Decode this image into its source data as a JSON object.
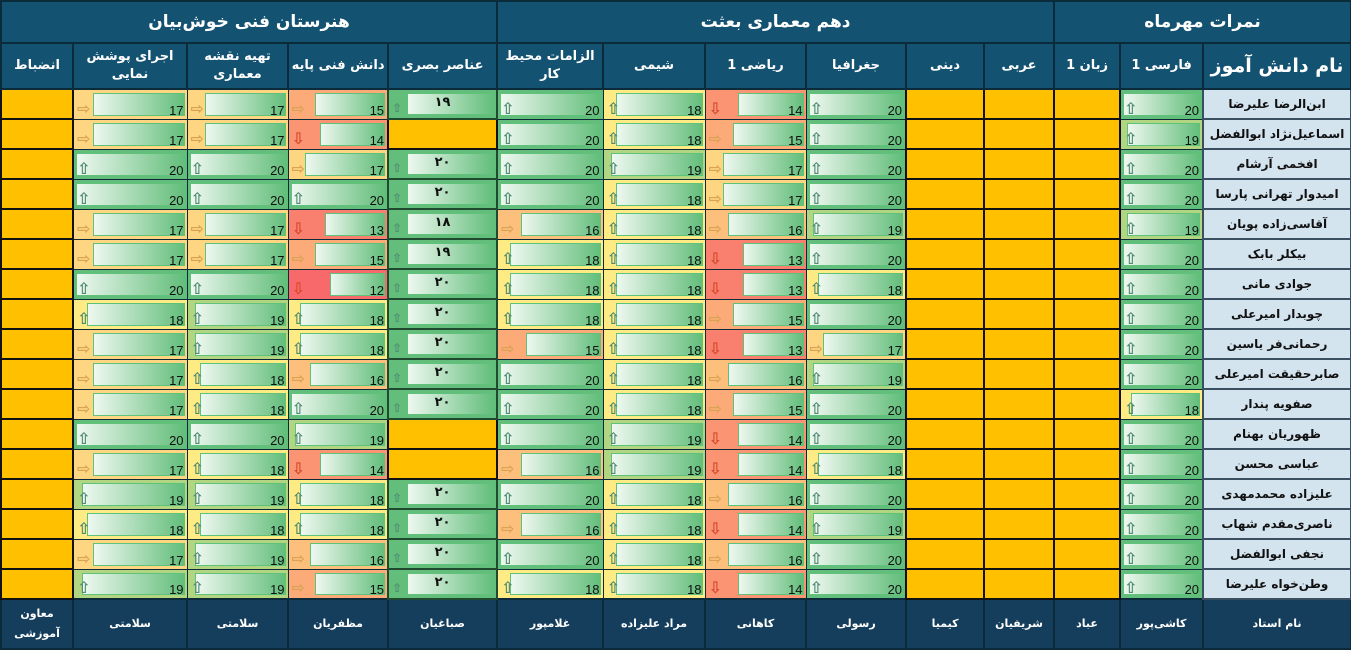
{
  "header_groups": [
    {
      "label": "نمرات مهرماه"
    },
    {
      "label": "دهم معماری بعثت"
    },
    {
      "label": "هنرستان فنی خوش‌بیان"
    }
  ],
  "columns": [
    "نام دانش آموز",
    "فارسی 1",
    "زبان 1",
    "عربی",
    "دینی",
    "جغرافیا",
    "ریاضی 1",
    "شیمی",
    "الزامات محیط کار",
    "عناصر بصری",
    "دانش فنی پایه",
    "تهیه نقشه معماری",
    "اجرای پوشش نمایی",
    "انضباط"
  ],
  "students": [
    {
      "name": "ابن‌الرضا علیرضا",
      "scores": [
        20,
        null,
        null,
        null,
        20,
        14,
        18,
        20,
        "۱۹",
        15,
        17,
        17,
        null
      ]
    },
    {
      "name": "اسماعیل‌نژاد ابوالفضل",
      "scores": [
        19,
        null,
        null,
        null,
        20,
        15,
        18,
        20,
        null,
        14,
        17,
        17,
        null
      ]
    },
    {
      "name": "افخمی آرشام",
      "scores": [
        20,
        null,
        null,
        null,
        20,
        17,
        19,
        20,
        "۲۰",
        17,
        20,
        20,
        null
      ]
    },
    {
      "name": "امیدوار تهرانی پارسا",
      "scores": [
        20,
        null,
        null,
        null,
        20,
        17,
        18,
        20,
        "۲۰",
        20,
        20,
        20,
        null
      ]
    },
    {
      "name": "آقاسی‌زاده پویان",
      "scores": [
        19,
        null,
        null,
        null,
        19,
        16,
        18,
        16,
        "۱۸",
        13,
        17,
        17,
        null
      ]
    },
    {
      "name": "بیکلر بابک",
      "scores": [
        20,
        null,
        null,
        null,
        20,
        13,
        18,
        18,
        "۱۹",
        15,
        17,
        17,
        null
      ]
    },
    {
      "name": "جوادی مانی",
      "scores": [
        20,
        null,
        null,
        null,
        18,
        13,
        18,
        18,
        "۲۰",
        12,
        20,
        20,
        null
      ]
    },
    {
      "name": "چوبدار امیرعلی",
      "scores": [
        20,
        null,
        null,
        null,
        20,
        15,
        18,
        18,
        "۲۰",
        18,
        19,
        18,
        null
      ]
    },
    {
      "name": "رحمانی‌فر یاسین",
      "scores": [
        20,
        null,
        null,
        null,
        17,
        13,
        18,
        15,
        "۲۰",
        18,
        19,
        17,
        null
      ]
    },
    {
      "name": "صابرحقیقت امیرعلی",
      "scores": [
        20,
        null,
        null,
        null,
        19,
        16,
        18,
        20,
        "۲۰",
        16,
        18,
        17,
        null
      ]
    },
    {
      "name": "صفویه پندار",
      "scores": [
        18,
        null,
        null,
        null,
        20,
        15,
        18,
        20,
        "۲۰",
        20,
        18,
        17,
        null
      ]
    },
    {
      "name": "ظهوریان بهنام",
      "scores": [
        20,
        null,
        null,
        null,
        20,
        14,
        19,
        20,
        null,
        19,
        20,
        20,
        null
      ]
    },
    {
      "name": "عباسی محسن",
      "scores": [
        20,
        null,
        null,
        null,
        18,
        14,
        19,
        16,
        null,
        14,
        18,
        17,
        null
      ]
    },
    {
      "name": "علیزاده محمدمهدی",
      "scores": [
        20,
        null,
        null,
        null,
        20,
        16,
        18,
        20,
        "۲۰",
        18,
        19,
        19,
        null
      ]
    },
    {
      "name": "ناصری‌مقدم شهاب",
      "scores": [
        20,
        null,
        null,
        null,
        19,
        14,
        18,
        16,
        "۲۰",
        18,
        18,
        18,
        null
      ]
    },
    {
      "name": "نجفی ابوالفضل",
      "scores": [
        20,
        null,
        null,
        null,
        20,
        16,
        18,
        20,
        "۲۰",
        16,
        19,
        17,
        null
      ]
    },
    {
      "name": "وطن‌خواه علیرضا",
      "scores": [
        20,
        null,
        null,
        null,
        20,
        14,
        18,
        18,
        "۲۰",
        15,
        19,
        19,
        null
      ]
    }
  ],
  "teachers": [
    "نام استاد",
    "کاشی‌پور",
    "عباد",
    "شریفیان",
    "کیمیا",
    "رسولی",
    "کاهانی",
    "مراد علیزاده",
    "غلامپور",
    "صباغیان",
    "مظفریان",
    "سلامتی",
    "سلامتی",
    "معاون آموزشی"
  ],
  "colors": {
    "empty": "#ffc000",
    "header": "#145272",
    "green": "#63be7b",
    "yellow": "#ffeb84",
    "red": "#f8696b"
  }
}
